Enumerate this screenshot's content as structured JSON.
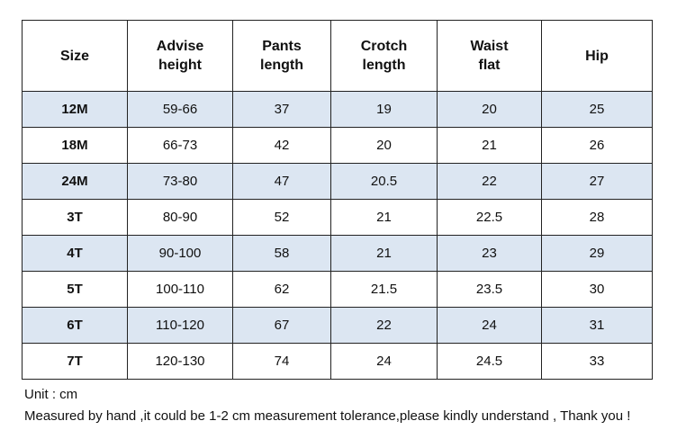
{
  "table": {
    "headers": [
      [
        "Size"
      ],
      [
        "Advise",
        "height"
      ],
      [
        "Pants",
        "length"
      ],
      [
        "Crotch",
        "length"
      ],
      [
        "Waist",
        "flat"
      ],
      [
        "Hip"
      ]
    ],
    "rows": [
      {
        "size": "12M",
        "advise_height": "59-66",
        "pants_length": "37",
        "crotch_length": "19",
        "waist_flat": "20",
        "hip": "25"
      },
      {
        "size": "18M",
        "advise_height": "66-73",
        "pants_length": "42",
        "crotch_length": "20",
        "waist_flat": "21",
        "hip": "26"
      },
      {
        "size": "24M",
        "advise_height": "73-80",
        "pants_length": "47",
        "crotch_length": "20.5",
        "waist_flat": "22",
        "hip": "27"
      },
      {
        "size": "3T",
        "advise_height": "80-90",
        "pants_length": "52",
        "crotch_length": "21",
        "waist_flat": "22.5",
        "hip": "28"
      },
      {
        "size": "4T",
        "advise_height": "90-100",
        "pants_length": "58",
        "crotch_length": "21",
        "waist_flat": "23",
        "hip": "29"
      },
      {
        "size": "5T",
        "advise_height": "100-110",
        "pants_length": "62",
        "crotch_length": "21.5",
        "waist_flat": "23.5",
        "hip": "30"
      },
      {
        "size": "6T",
        "advise_height": "110-120",
        "pants_length": "67",
        "crotch_length": "22",
        "waist_flat": "24",
        "hip": "31"
      },
      {
        "size": "7T",
        "advise_height": "120-130",
        "pants_length": "74",
        "crotch_length": "24",
        "waist_flat": "24.5",
        "hip": "33"
      }
    ],
    "colors": {
      "shaded_row": "#dce6f2",
      "plain_row": "#ffffff",
      "border": "#222222"
    }
  },
  "notes": {
    "unit": "Unit : cm",
    "tolerance": "Measured by hand ,it could be 1-2 cm measurement tolerance,please kindly understand , Thank you !"
  }
}
